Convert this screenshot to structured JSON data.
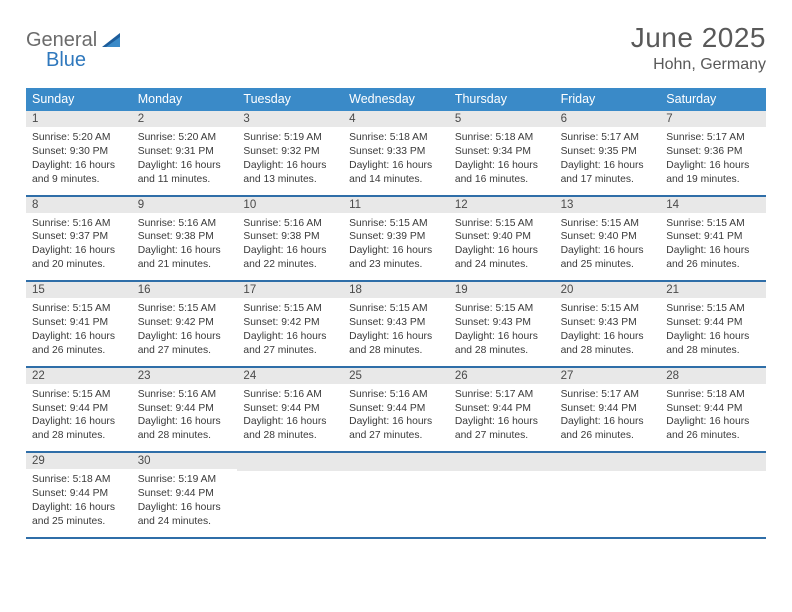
{
  "logo": {
    "word1": "General",
    "word2": "Blue"
  },
  "colors": {
    "header_bg": "#3a8ac8",
    "week_divider": "#2f6ea8",
    "daynum_bg": "#e8e8e8",
    "text": "#3a3a3a",
    "title": "#595959",
    "logo_gray": "#6b6b6b",
    "logo_blue": "#2f78bd"
  },
  "title": "June 2025",
  "location": "Hohn, Germany",
  "day_names": [
    "Sunday",
    "Monday",
    "Tuesday",
    "Wednesday",
    "Thursday",
    "Friday",
    "Saturday"
  ],
  "weeks": [
    [
      {
        "n": "1",
        "sunrise": "5:20 AM",
        "sunset": "9:30 PM",
        "daylight": "16 hours and 9 minutes."
      },
      {
        "n": "2",
        "sunrise": "5:20 AM",
        "sunset": "9:31 PM",
        "daylight": "16 hours and 11 minutes."
      },
      {
        "n": "3",
        "sunrise": "5:19 AM",
        "sunset": "9:32 PM",
        "daylight": "16 hours and 13 minutes."
      },
      {
        "n": "4",
        "sunrise": "5:18 AM",
        "sunset": "9:33 PM",
        "daylight": "16 hours and 14 minutes."
      },
      {
        "n": "5",
        "sunrise": "5:18 AM",
        "sunset": "9:34 PM",
        "daylight": "16 hours and 16 minutes."
      },
      {
        "n": "6",
        "sunrise": "5:17 AM",
        "sunset": "9:35 PM",
        "daylight": "16 hours and 17 minutes."
      },
      {
        "n": "7",
        "sunrise": "5:17 AM",
        "sunset": "9:36 PM",
        "daylight": "16 hours and 19 minutes."
      }
    ],
    [
      {
        "n": "8",
        "sunrise": "5:16 AM",
        "sunset": "9:37 PM",
        "daylight": "16 hours and 20 minutes."
      },
      {
        "n": "9",
        "sunrise": "5:16 AM",
        "sunset": "9:38 PM",
        "daylight": "16 hours and 21 minutes."
      },
      {
        "n": "10",
        "sunrise": "5:16 AM",
        "sunset": "9:38 PM",
        "daylight": "16 hours and 22 minutes."
      },
      {
        "n": "11",
        "sunrise": "5:15 AM",
        "sunset": "9:39 PM",
        "daylight": "16 hours and 23 minutes."
      },
      {
        "n": "12",
        "sunrise": "5:15 AM",
        "sunset": "9:40 PM",
        "daylight": "16 hours and 24 minutes."
      },
      {
        "n": "13",
        "sunrise": "5:15 AM",
        "sunset": "9:40 PM",
        "daylight": "16 hours and 25 minutes."
      },
      {
        "n": "14",
        "sunrise": "5:15 AM",
        "sunset": "9:41 PM",
        "daylight": "16 hours and 26 minutes."
      }
    ],
    [
      {
        "n": "15",
        "sunrise": "5:15 AM",
        "sunset": "9:41 PM",
        "daylight": "16 hours and 26 minutes."
      },
      {
        "n": "16",
        "sunrise": "5:15 AM",
        "sunset": "9:42 PM",
        "daylight": "16 hours and 27 minutes."
      },
      {
        "n": "17",
        "sunrise": "5:15 AM",
        "sunset": "9:42 PM",
        "daylight": "16 hours and 27 minutes."
      },
      {
        "n": "18",
        "sunrise": "5:15 AM",
        "sunset": "9:43 PM",
        "daylight": "16 hours and 28 minutes."
      },
      {
        "n": "19",
        "sunrise": "5:15 AM",
        "sunset": "9:43 PM",
        "daylight": "16 hours and 28 minutes."
      },
      {
        "n": "20",
        "sunrise": "5:15 AM",
        "sunset": "9:43 PM",
        "daylight": "16 hours and 28 minutes."
      },
      {
        "n": "21",
        "sunrise": "5:15 AM",
        "sunset": "9:44 PM",
        "daylight": "16 hours and 28 minutes."
      }
    ],
    [
      {
        "n": "22",
        "sunrise": "5:15 AM",
        "sunset": "9:44 PM",
        "daylight": "16 hours and 28 minutes."
      },
      {
        "n": "23",
        "sunrise": "5:16 AM",
        "sunset": "9:44 PM",
        "daylight": "16 hours and 28 minutes."
      },
      {
        "n": "24",
        "sunrise": "5:16 AM",
        "sunset": "9:44 PM",
        "daylight": "16 hours and 28 minutes."
      },
      {
        "n": "25",
        "sunrise": "5:16 AM",
        "sunset": "9:44 PM",
        "daylight": "16 hours and 27 minutes."
      },
      {
        "n": "26",
        "sunrise": "5:17 AM",
        "sunset": "9:44 PM",
        "daylight": "16 hours and 27 minutes."
      },
      {
        "n": "27",
        "sunrise": "5:17 AM",
        "sunset": "9:44 PM",
        "daylight": "16 hours and 26 minutes."
      },
      {
        "n": "28",
        "sunrise": "5:18 AM",
        "sunset": "9:44 PM",
        "daylight": "16 hours and 26 minutes."
      }
    ],
    [
      {
        "n": "29",
        "sunrise": "5:18 AM",
        "sunset": "9:44 PM",
        "daylight": "16 hours and 25 minutes."
      },
      {
        "n": "30",
        "sunrise": "5:19 AM",
        "sunset": "9:44 PM",
        "daylight": "16 hours and 24 minutes."
      },
      null,
      null,
      null,
      null,
      null
    ]
  ],
  "labels": {
    "sunrise": "Sunrise:",
    "sunset": "Sunset:",
    "daylight": "Daylight:"
  }
}
